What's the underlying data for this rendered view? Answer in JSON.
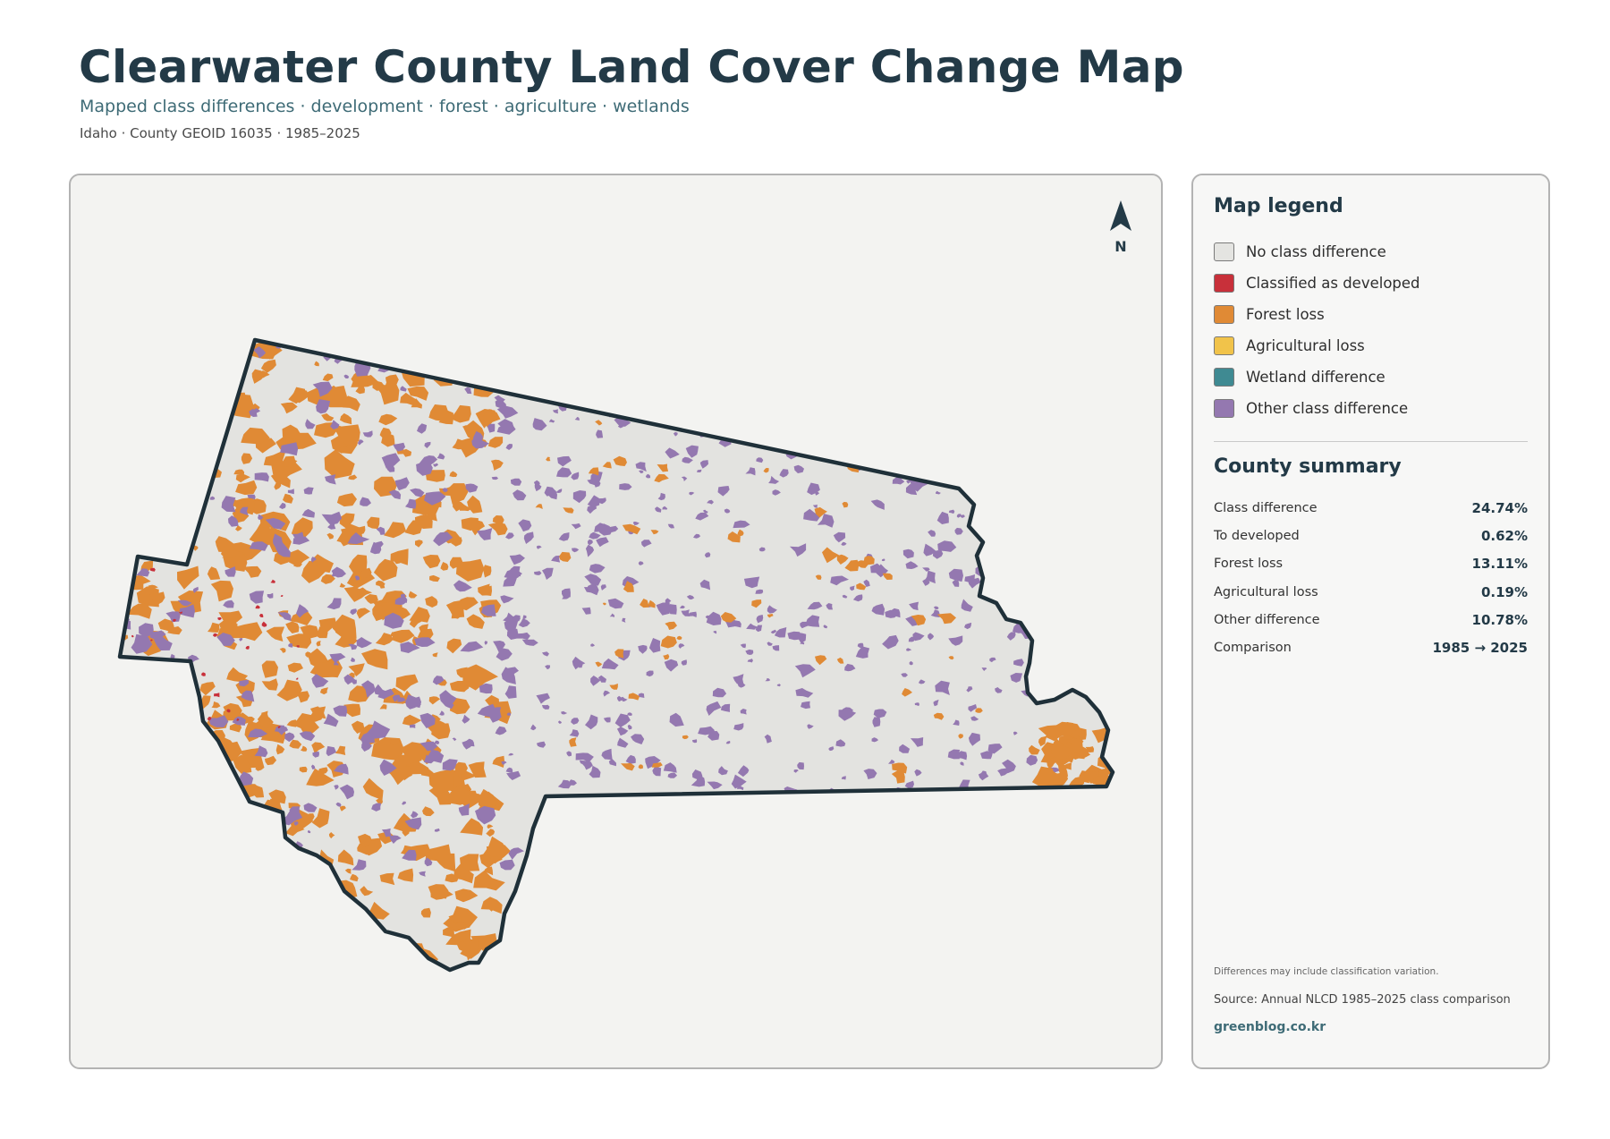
{
  "header": {
    "title": "Clearwater County Land Cover Change Map",
    "subtitle": "Mapped class differences · development · forest · agriculture · wetlands",
    "meta": "Idaho · County GEOID 16035 · 1985–2025"
  },
  "map": {
    "north_label": "N",
    "boundary_color": "#1f3039",
    "fill_color": "#e3e3e0",
    "patch_colors": {
      "forest_loss": "#e08a35",
      "other_difference": "#9478b0",
      "developed": "#c8303a"
    }
  },
  "legend": {
    "heading": "Map legend",
    "items": [
      {
        "label": "No class difference",
        "color": "#e4e4e1"
      },
      {
        "label": "Classified as developed",
        "color": "#c8303a"
      },
      {
        "label": "Forest loss",
        "color": "#e08a35"
      },
      {
        "label": "Agricultural loss",
        "color": "#f1c34a"
      },
      {
        "label": "Wetland difference",
        "color": "#3f8a92"
      },
      {
        "label": "Other class difference",
        "color": "#9478b0"
      }
    ]
  },
  "summary": {
    "heading": "County summary",
    "rows": [
      {
        "label": "Class difference",
        "value": "24.74%"
      },
      {
        "label": "To developed",
        "value": "0.62%"
      },
      {
        "label": "Forest loss",
        "value": "13.11%"
      },
      {
        "label": "Agricultural loss",
        "value": "0.19%"
      },
      {
        "label": "Other difference",
        "value": "10.78%"
      },
      {
        "label": "Comparison",
        "value": "1985 → 2025"
      }
    ]
  },
  "footer": {
    "disclaimer": "Differences may include classification variation.",
    "source": "Source: Annual NLCD 1985–2025 class comparison",
    "site": "greenblog.co.kr"
  }
}
